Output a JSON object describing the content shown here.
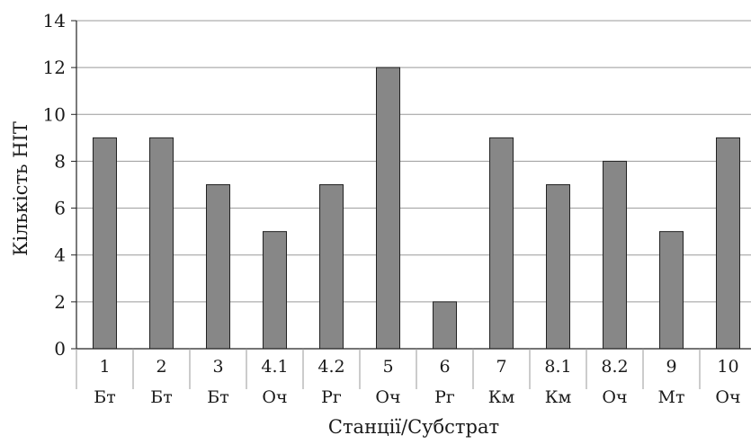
{
  "chart_data": {
    "type": "bar",
    "categories": [
      "1",
      "2",
      "3",
      "4.1",
      "4.2",
      "5",
      "6",
      "7",
      "8.1",
      "8.2",
      "9",
      "10"
    ],
    "substrates": [
      "Бт",
      "Бт",
      "Бт",
      "Оч",
      "Рг",
      "Оч",
      "Рг",
      "Км",
      "Км",
      "Оч",
      "Мт",
      "Оч"
    ],
    "values": [
      9,
      9,
      7,
      5,
      7,
      12,
      2,
      9,
      7,
      8,
      5,
      9
    ],
    "xlabel": "Станції/Субстрат",
    "ylabel": "Кількість НІТ",
    "ylim": [
      0,
      14
    ],
    "yticks": [
      0,
      2,
      4,
      6,
      8,
      10,
      12,
      14
    ],
    "grid": true,
    "colors": {
      "bar": "#878787",
      "bar_edge": "#222222",
      "grid": "#9a9a9a",
      "axis": "#222222"
    }
  }
}
